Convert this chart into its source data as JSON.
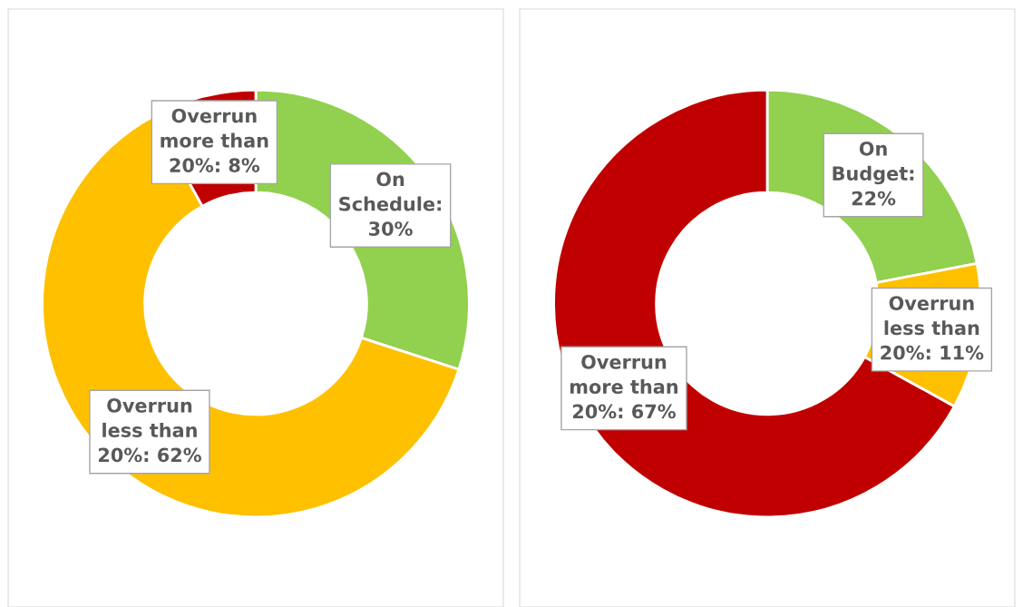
{
  "chart_data": [
    {
      "type": "donut",
      "categories": [
        null,
        null,
        null
      ],
      "values": [
        30,
        62,
        8
      ],
      "colors": [
        "#92d050",
        "#ffc000",
        "#c00000"
      ],
      "value_labels": [
        "On Schedule: 30%",
        "Overrun less than 20%: 62%",
        "Overrun more than 20%: 8%"
      ],
      "legend": false
    },
    {
      "type": "donut",
      "categories": [
        null,
        null,
        null
      ],
      "values": [
        22,
        11,
        67
      ],
      "colors": [
        "#92d050",
        "#ffc000",
        "#c00000"
      ],
      "value_labels": [
        "On Budget: 22%",
        "Overrun less than 20%: 11%",
        "Overrun more than 20%: 67%"
      ],
      "legend": false
    }
  ]
}
